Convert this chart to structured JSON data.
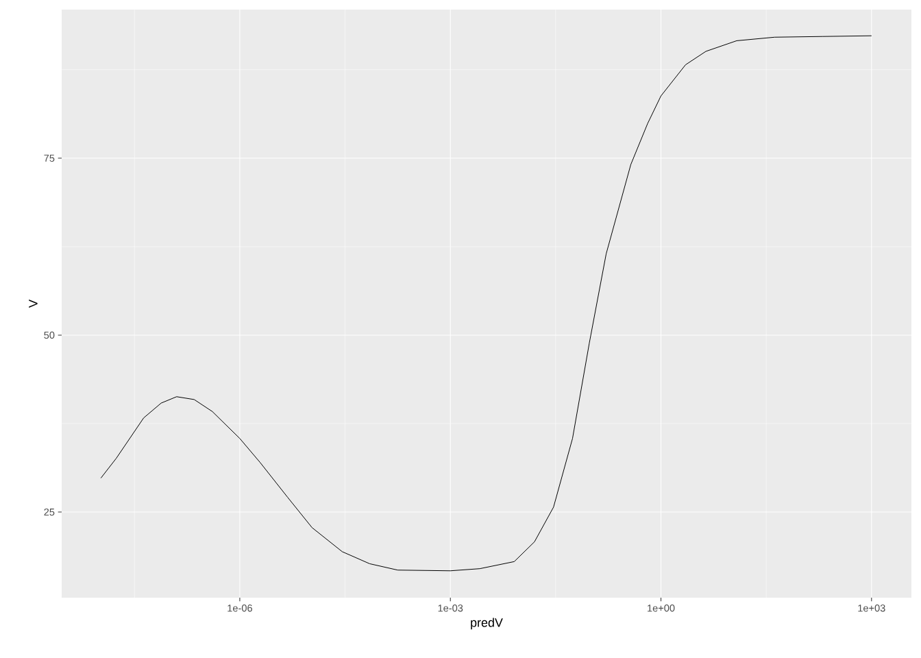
{
  "chart_data": {
    "type": "line",
    "xlabel": "predV",
    "ylabel": "V",
    "log": "x",
    "grid": true,
    "x": [
      1.05e-08,
      1.74e-08,
      4.27e-08,
      7.59e-08,
      1.26e-07,
      2.24e-07,
      4.07e-07,
      1e-06,
      1.95e-06,
      4.79e-06,
      1.07e-05,
      2.88e-05,
      7.08e-05,
      0.000178,
      0.001,
      0.00263,
      0.00813,
      0.0158,
      0.0295,
      0.055,
      0.0955,
      0.166,
      0.372,
      0.646,
      1,
      2.24,
      4.37,
      12,
      41.7,
      200,
      1000
    ],
    "series": [
      {
        "color": "#000000",
        "values": [
          29.8,
          32.6,
          38.3,
          40.4,
          41.3,
          40.9,
          39.2,
          35.4,
          32.0,
          27.1,
          22.8,
          19.4,
          17.7,
          16.8,
          16.7,
          17.0,
          18.0,
          20.8,
          25.7,
          35.4,
          48.9,
          61.5,
          74.1,
          79.9,
          83.8,
          88.2,
          90.1,
          91.6,
          92.1,
          92.2,
          92.3
        ]
      }
    ],
    "xlim": [
      2.9e-09,
      3700
    ],
    "ylim": [
      12.9,
      96.0
    ],
    "xticks": [
      {
        "value": 1e-06,
        "label": "1e-06"
      },
      {
        "value": 0.001,
        "label": "1e-03"
      },
      {
        "value": 1,
        "label": "1e+00"
      },
      {
        "value": 1000,
        "label": "1e+03"
      }
    ],
    "yticks": [
      25,
      50,
      75
    ]
  }
}
